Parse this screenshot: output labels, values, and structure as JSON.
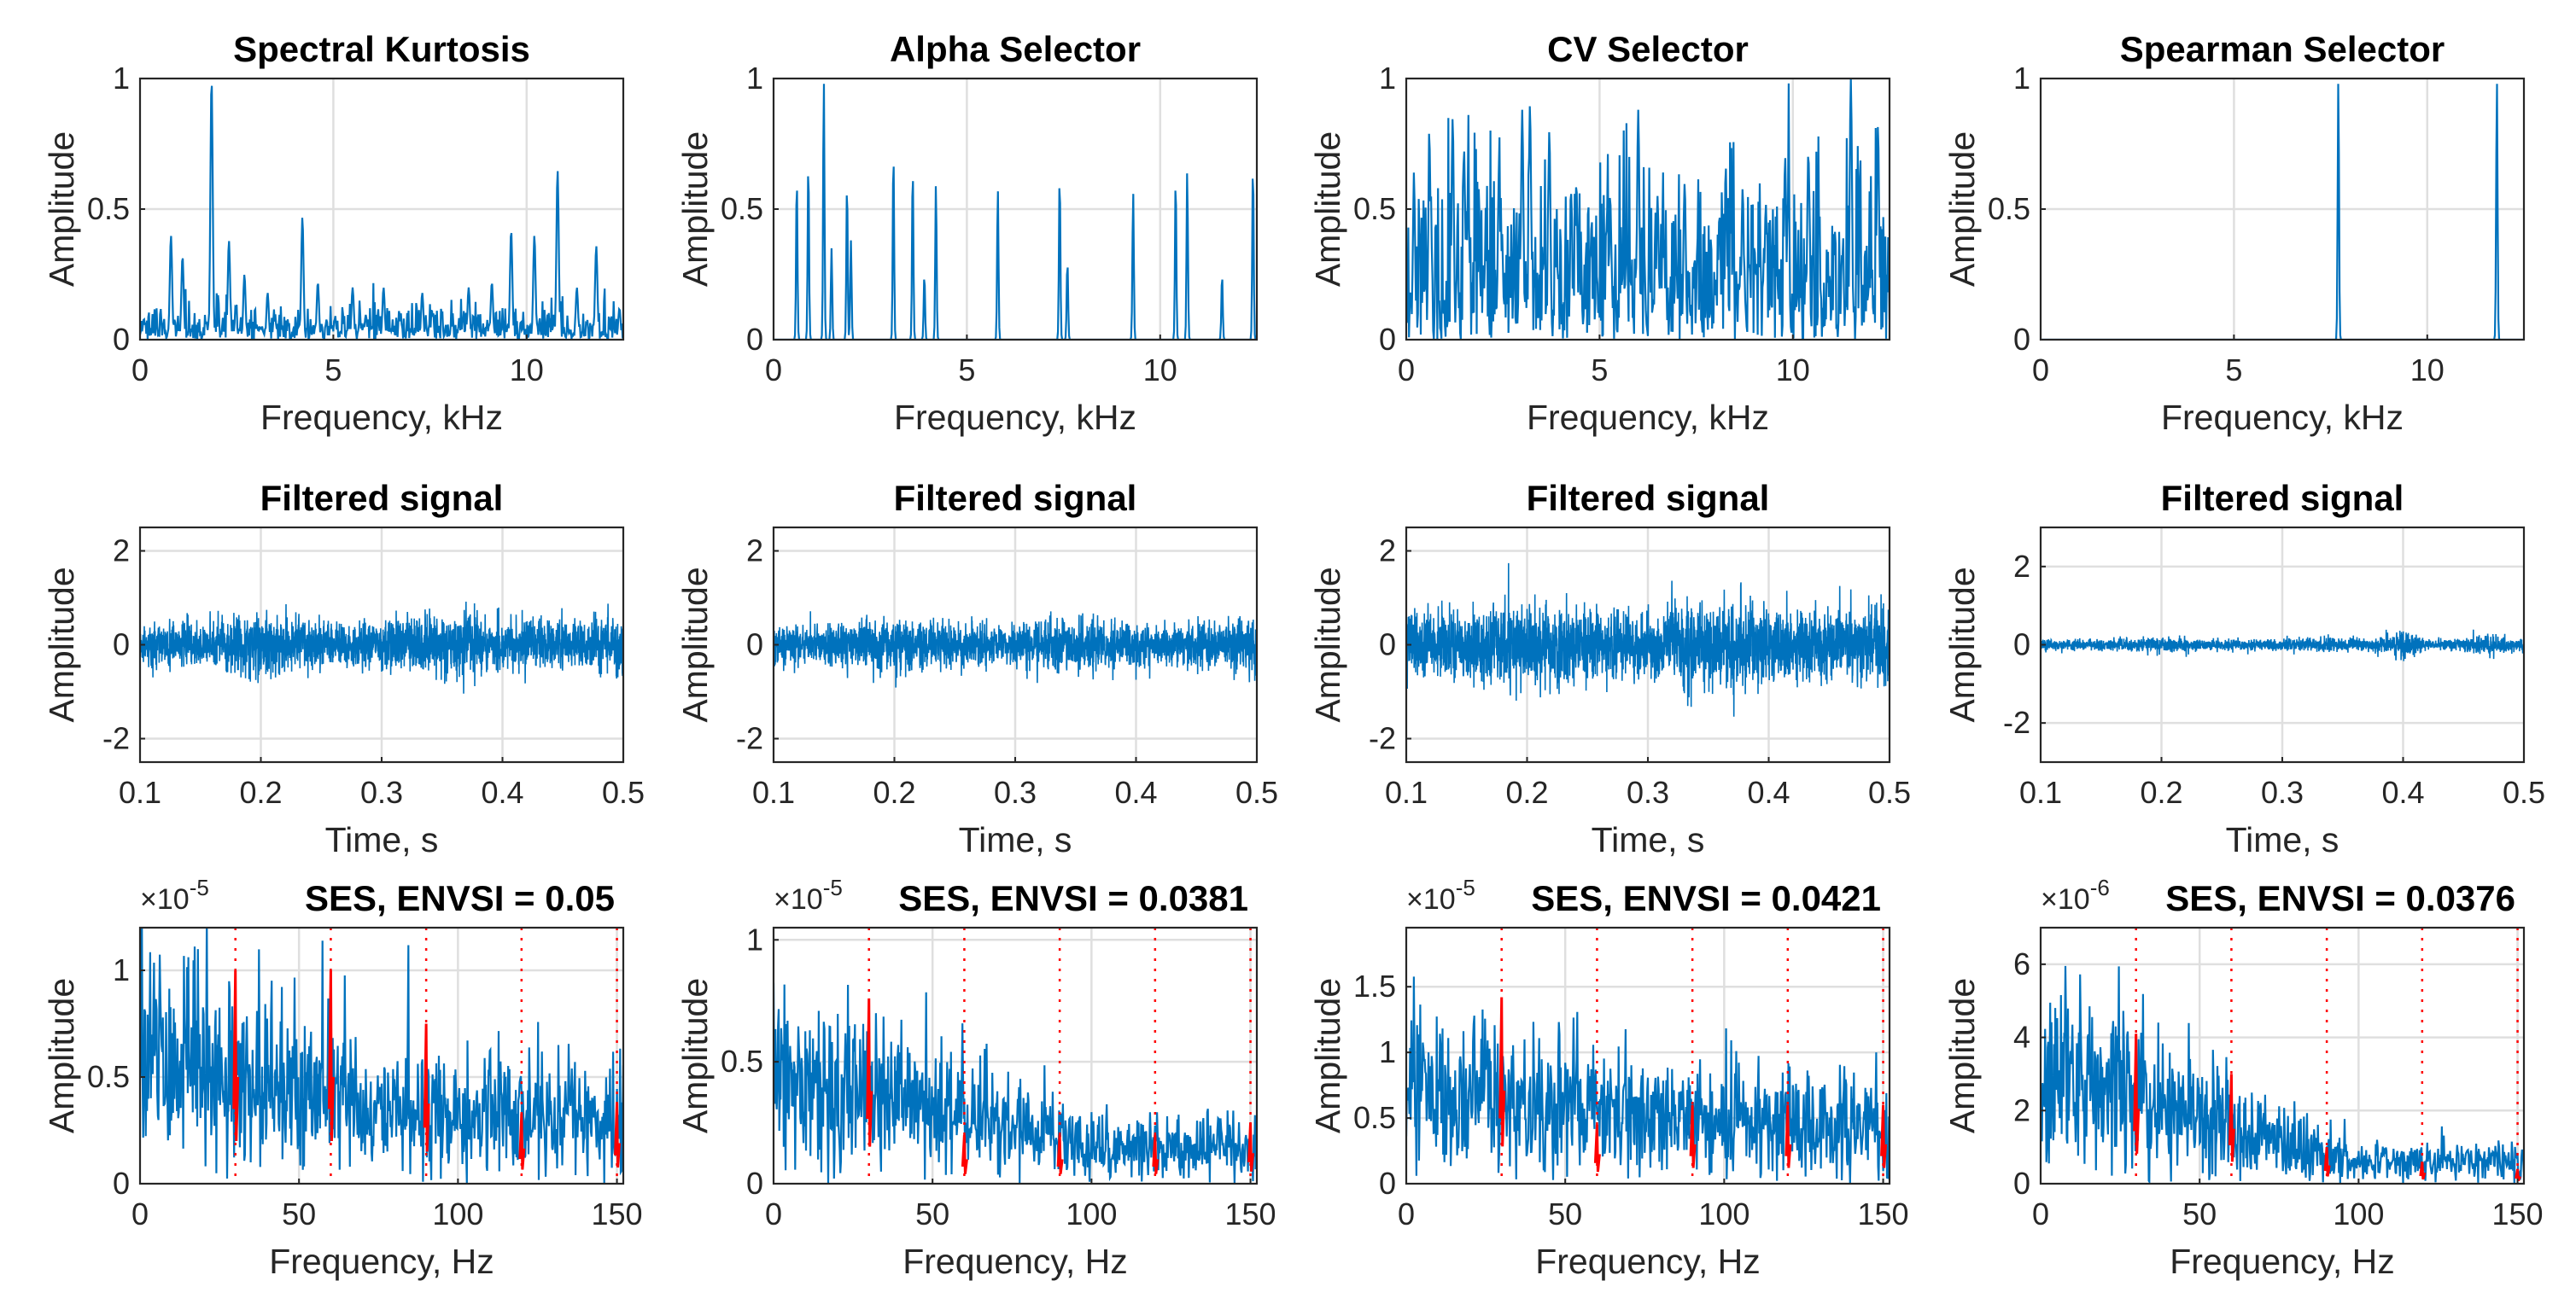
{
  "colors": {
    "signal": "#0072BD",
    "harmonic": "#FF0000",
    "grid": "#DFDFDF",
    "axis": "#262626"
  },
  "chart_data": [
    {
      "type": "line",
      "panel": "spectrum",
      "title": "Spectral Kurtosis",
      "xlabel": "Frequency, kHz",
      "ylabel": "Amplitude",
      "xlim": [
        0,
        12.5
      ],
      "ylim": [
        0,
        1
      ],
      "xticks": [
        "0",
        "5",
        "10"
      ],
      "xtickv": [
        0,
        5,
        10
      ],
      "yticks": [
        "0",
        "0.5",
        "1"
      ],
      "ytickv": [
        0,
        0.5,
        1
      ],
      "grid": true,
      "background": 0.1,
      "dense": false,
      "peaks": [
        [
          0.1,
          0.08
        ],
        [
          0.8,
          0.4
        ],
        [
          1.1,
          0.32
        ],
        [
          1.85,
          1.0
        ],
        [
          2.3,
          0.38
        ],
        [
          2.7,
          0.25
        ],
        [
          3.3,
          0.18
        ],
        [
          4.2,
          0.47
        ],
        [
          4.6,
          0.22
        ],
        [
          5.5,
          0.2
        ],
        [
          6.3,
          0.2
        ],
        [
          7.3,
          0.18
        ],
        [
          8.5,
          0.2
        ],
        [
          9.1,
          0.22
        ],
        [
          9.6,
          0.42
        ],
        [
          10.2,
          0.4
        ],
        [
          10.8,
          0.65
        ],
        [
          11.3,
          0.2
        ],
        [
          11.8,
          0.36
        ],
        [
          12.4,
          0.12
        ]
      ]
    },
    {
      "type": "line",
      "panel": "spectrum",
      "title": "Alpha Selector",
      "xlabel": "Frequency, kHz",
      "ylabel": "Amplitude",
      "xlim": [
        0,
        12.5
      ],
      "ylim": [
        0,
        1
      ],
      "xticks": [
        "0",
        "5",
        "10"
      ],
      "xtickv": [
        0,
        5,
        10
      ],
      "yticks": [
        "0",
        "0.5",
        "1"
      ],
      "ytickv": [
        0,
        0.5,
        1
      ],
      "grid": true,
      "background": 0,
      "dense": false,
      "peaks": [
        [
          0.6,
          0.62
        ],
        [
          0.9,
          0.68
        ],
        [
          1.3,
          1.0
        ],
        [
          1.5,
          0.35
        ],
        [
          1.9,
          0.6
        ],
        [
          2.0,
          0.38
        ],
        [
          3.1,
          0.72
        ],
        [
          3.6,
          0.66
        ],
        [
          3.9,
          0.25
        ],
        [
          4.2,
          0.6
        ],
        [
          5.8,
          0.58
        ],
        [
          7.4,
          0.63
        ],
        [
          7.6,
          0.3
        ],
        [
          9.3,
          0.57
        ],
        [
          10.4,
          0.62
        ],
        [
          10.7,
          0.65
        ],
        [
          11.6,
          0.25
        ],
        [
          12.4,
          0.67
        ]
      ]
    },
    {
      "type": "line",
      "panel": "spectrum",
      "title": "CV Selector",
      "xlabel": "Frequency, kHz",
      "ylabel": "Amplitude",
      "xlim": [
        0,
        12.5
      ],
      "ylim": [
        0,
        1
      ],
      "xticks": [
        "0",
        "5",
        "10"
      ],
      "xtickv": [
        0,
        5,
        10
      ],
      "yticks": [
        "0",
        "0.5",
        "1"
      ],
      "ytickv": [
        0,
        0.5,
        1
      ],
      "grid": true,
      "background": 0.22,
      "dense": true,
      "peaks": [
        [
          0.2,
          0.6
        ],
        [
          0.6,
          0.75
        ],
        [
          1.2,
          0.85
        ],
        [
          1.6,
          0.6
        ],
        [
          2.4,
          0.65
        ],
        [
          3.0,
          0.88
        ],
        [
          3.2,
          0.9
        ],
        [
          3.7,
          0.8
        ],
        [
          4.4,
          0.6
        ],
        [
          5.2,
          0.5
        ],
        [
          6.0,
          0.88
        ],
        [
          6.5,
          0.55
        ],
        [
          7.2,
          0.6
        ],
        [
          8.1,
          0.48
        ],
        [
          8.7,
          0.58
        ],
        [
          9.3,
          0.52
        ],
        [
          9.8,
          0.7
        ],
        [
          10.4,
          0.72
        ],
        [
          11.5,
          1.0
        ],
        [
          12.2,
          0.82
        ]
      ]
    },
    {
      "type": "line",
      "panel": "spectrum",
      "title": "Spearman Selector",
      "xlabel": "Frequency, kHz",
      "ylabel": "Amplitude",
      "xlim": [
        0,
        12.5
      ],
      "ylim": [
        0,
        1
      ],
      "xticks": [
        "0",
        "5",
        "10"
      ],
      "xtickv": [
        0,
        5,
        10
      ],
      "yticks": [
        "0",
        "0.5",
        "1"
      ],
      "ytickv": [
        0,
        0.5,
        1
      ],
      "grid": true,
      "background": 0,
      "dense": false,
      "peaks": [
        [
          7.7,
          1.0
        ],
        [
          11.8,
          1.0
        ]
      ]
    },
    {
      "type": "line",
      "panel": "time",
      "title": "Filtered signal",
      "xlabel": "Time, s",
      "ylabel": "Amplitude",
      "xlim": [
        0.1,
        0.5
      ],
      "ylim": [
        -2.5,
        2.5
      ],
      "xticks": [
        "0.1",
        "0.2",
        "0.3",
        "0.4",
        "0.5"
      ],
      "xtickv": [
        0.1,
        0.2,
        0.3,
        0.4,
        0.5
      ],
      "yticks": [
        "-2",
        "0",
        "2"
      ],
      "ytickv": [
        -2,
        0,
        2
      ],
      "grid": true,
      "std": 0.28,
      "bumps": []
    },
    {
      "type": "line",
      "panel": "time",
      "title": "Filtered signal",
      "xlabel": "Time, s",
      "ylabel": "Amplitude",
      "xlim": [
        0.1,
        0.5
      ],
      "ylim": [
        -2.5,
        2.5
      ],
      "xticks": [
        "0.1",
        "0.2",
        "0.3",
        "0.4",
        "0.5"
      ],
      "xtickv": [
        0.1,
        0.2,
        0.3,
        0.4,
        0.5
      ],
      "yticks": [
        "-2",
        "0",
        "2"
      ],
      "ytickv": [
        -2,
        0,
        2
      ],
      "grid": true,
      "std": 0.24,
      "bumps": []
    },
    {
      "type": "line",
      "panel": "time",
      "title": "Filtered signal",
      "xlabel": "Time, s",
      "ylabel": "Amplitude",
      "xlim": [
        0.1,
        0.5
      ],
      "ylim": [
        -2.5,
        2.5
      ],
      "xticks": [
        "0.1",
        "0.2",
        "0.3",
        "0.4",
        "0.5"
      ],
      "xtickv": [
        0.1,
        0.2,
        0.3,
        0.4,
        0.5
      ],
      "yticks": [
        "-2",
        "0",
        "2"
      ],
      "ytickv": [
        -2,
        0,
        2
      ],
      "grid": true,
      "std": 0.4,
      "bumps": []
    },
    {
      "type": "line",
      "panel": "time",
      "title": "Filtered signal",
      "xlabel": "Time, s",
      "ylabel": "Amplitude",
      "xlim": [
        0.1,
        0.5
      ],
      "ylim": [
        -3,
        3
      ],
      "xticks": [
        "0.1",
        "0.2",
        "0.3",
        "0.4",
        "0.5"
      ],
      "xtickv": [
        0.1,
        0.2,
        0.3,
        0.4,
        0.5
      ],
      "yticks": [
        "-2",
        "0",
        "2"
      ],
      "ytickv": [
        -2,
        0,
        2
      ],
      "grid": true,
      "std": 0.08,
      "bumps": [
        [
          0.4,
          0.12
        ],
        [
          0.47,
          0.08
        ]
      ]
    },
    {
      "type": "line",
      "panel": "envelope",
      "title": "SES, ENVSI = 0.05",
      "exponent": "×10",
      "exponent_power": "-5",
      "xlabel": "Frequency, Hz",
      "ylabel": "Amplitude",
      "xlim": [
        0,
        152
      ],
      "ylim": [
        0,
        1.2
      ],
      "xticks": [
        "0",
        "50",
        "100",
        "150"
      ],
      "xtickv": [
        0,
        50,
        100,
        150
      ],
      "yticks": [
        "0",
        "0.5",
        "1"
      ],
      "ytickv": [
        0,
        0.5,
        1
      ],
      "grid": true,
      "level_start": 0.6,
      "level_end": 0.3,
      "harmonics_hz": [
        30,
        60,
        90,
        120,
        150
      ],
      "harmonic_amplitudes": [
        1.0,
        1.0,
        0.75,
        0.33,
        0.38
      ]
    },
    {
      "type": "line",
      "panel": "envelope",
      "title": "SES, ENVSI = 0.0381",
      "exponent": "×10",
      "exponent_power": "-5",
      "xlabel": "Frequency, Hz",
      "ylabel": "Amplitude",
      "xlim": [
        0,
        152
      ],
      "ylim": [
        0,
        1.05
      ],
      "xticks": [
        "0",
        "50",
        "100",
        "150"
      ],
      "xtickv": [
        0,
        50,
        100,
        150
      ],
      "yticks": [
        "0",
        "0.5",
        "1"
      ],
      "ytickv": [
        0,
        0.5,
        1
      ],
      "grid": true,
      "level_start": 0.45,
      "level_end": 0.15,
      "harmonics_hz": [
        30,
        60,
        90,
        120,
        150
      ],
      "harmonic_amplitudes": [
        0.76,
        0.2,
        0.2,
        0.2,
        0.25
      ]
    },
    {
      "type": "line",
      "panel": "envelope",
      "title": "SES, ENVSI = 0.0421",
      "exponent": "×10",
      "exponent_power": "-5",
      "xlabel": "Frequency, Hz",
      "ylabel": "Amplitude",
      "xlim": [
        0,
        152
      ],
      "ylim": [
        0,
        1.95
      ],
      "xticks": [
        "0",
        "50",
        "100",
        "150"
      ],
      "xtickv": [
        0,
        50,
        100,
        150
      ],
      "yticks": [
        "0",
        "0.5",
        "1",
        "1.5"
      ],
      "ytickv": [
        0,
        0.5,
        1,
        1.5
      ],
      "grid": true,
      "level_start": 0.7,
      "level_end": 0.45,
      "harmonics_hz": [
        30,
        60,
        90,
        120,
        150
      ],
      "harmonic_amplitudes": [
        1.42,
        0.45,
        0.6,
        0.6,
        0.6
      ]
    },
    {
      "type": "line",
      "panel": "envelope",
      "title": "SES, ENVSI = 0.0376",
      "exponent": "×10",
      "exponent_power": "-6",
      "xlabel": "Frequency, Hz",
      "ylabel": "Amplitude",
      "xlim": [
        0,
        152
      ],
      "ylim": [
        0,
        7
      ],
      "xticks": [
        "0",
        "50",
        "100",
        "150"
      ],
      "xtickv": [
        0,
        50,
        100,
        150
      ],
      "yticks": [
        "0",
        "2",
        "4",
        "6"
      ],
      "ytickv": [
        0,
        2,
        4,
        6
      ],
      "grid": true,
      "level_start": 3.0,
      "level_end": 0.6,
      "harmonics_hz": [
        30,
        60,
        90,
        120,
        150
      ],
      "harmonic_amplitudes": [
        4.1,
        3.0,
        1.0,
        0.6,
        0.4
      ]
    }
  ]
}
